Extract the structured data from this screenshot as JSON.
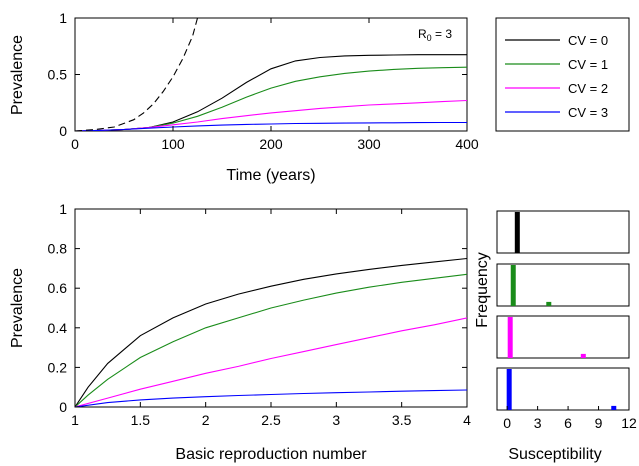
{
  "chart_data": [
    {
      "id": "top",
      "type": "line",
      "xlabel": "Time (years)",
      "ylabel": "Prevalence",
      "xlim": [
        0,
        400
      ],
      "ylim": [
        0,
        1
      ],
      "xticks": [
        "0",
        "100",
        "200",
        "300",
        "400"
      ],
      "yticks": [
        "0",
        "0.5",
        "1"
      ],
      "annotation": {
        "base": "R",
        "sub": "0",
        "rest": " = 3"
      },
      "series": [
        {
          "name": "CV = 0",
          "color": "#000000",
          "dash": false,
          "x": [
            0,
            25,
            50,
            75,
            100,
            125,
            150,
            175,
            200,
            225,
            250,
            275,
            300,
            325,
            350,
            375,
            400
          ],
          "y": [
            0.0,
            0.005,
            0.013,
            0.03,
            0.08,
            0.17,
            0.29,
            0.43,
            0.55,
            0.62,
            0.65,
            0.665,
            0.67,
            0.673,
            0.675,
            0.675,
            0.675
          ]
        },
        {
          "name": "CV = 1",
          "color": "#1a8c1a",
          "dash": false,
          "x": [
            0,
            25,
            50,
            75,
            100,
            125,
            150,
            175,
            200,
            225,
            250,
            275,
            300,
            325,
            350,
            375,
            400
          ],
          "y": [
            0.0,
            0.005,
            0.013,
            0.03,
            0.07,
            0.13,
            0.21,
            0.3,
            0.38,
            0.44,
            0.48,
            0.51,
            0.53,
            0.545,
            0.555,
            0.56,
            0.565
          ]
        },
        {
          "name": "CV = 2",
          "color": "#ff00ff",
          "dash": false,
          "x": [
            0,
            25,
            50,
            75,
            100,
            125,
            150,
            175,
            200,
            225,
            250,
            275,
            300,
            325,
            350,
            375,
            400
          ],
          "y": [
            0.0,
            0.005,
            0.013,
            0.03,
            0.055,
            0.08,
            0.11,
            0.135,
            0.16,
            0.18,
            0.2,
            0.215,
            0.23,
            0.24,
            0.25,
            0.26,
            0.27
          ]
        },
        {
          "name": "CV = 3",
          "color": "#0000ff",
          "dash": false,
          "x": [
            0,
            25,
            50,
            75,
            100,
            125,
            150,
            175,
            200,
            225,
            250,
            275,
            300,
            325,
            350,
            375,
            400
          ],
          "y": [
            0.0,
            0.005,
            0.013,
            0.025,
            0.035,
            0.045,
            0.052,
            0.058,
            0.062,
            0.066,
            0.068,
            0.07,
            0.072,
            0.073,
            0.074,
            0.075,
            0.075
          ]
        },
        {
          "name": "",
          "color": "#000000",
          "dash": true,
          "x": [
            0,
            20,
            40,
            60,
            70,
            80,
            90,
            100,
            110,
            120,
            125
          ],
          "y": [
            0.0,
            0.012,
            0.035,
            0.1,
            0.16,
            0.24,
            0.35,
            0.48,
            0.64,
            0.84,
            1.0
          ]
        }
      ],
      "legend": {
        "placement": "right",
        "entries": [
          "CV = 0",
          "CV = 1",
          "CV = 2",
          "CV = 3"
        ]
      }
    },
    {
      "id": "bottom",
      "type": "line",
      "xlabel": "Basic reproduction number",
      "ylabel": "Prevalence",
      "xlim": [
        1,
        4
      ],
      "ylim": [
        0,
        1
      ],
      "xticks": [
        "1",
        "1.5",
        "2",
        "2.5",
        "3",
        "3.5",
        "4"
      ],
      "yticks": [
        "0",
        "0.2",
        "0.4",
        "0.6",
        "0.8",
        "1"
      ],
      "series": [
        {
          "name": "CV = 0",
          "color": "#000000",
          "x": [
            1,
            1.1,
            1.25,
            1.5,
            1.75,
            2,
            2.25,
            2.5,
            2.75,
            3,
            3.25,
            3.5,
            3.75,
            4
          ],
          "y": [
            0,
            0.1,
            0.22,
            0.36,
            0.45,
            0.52,
            0.57,
            0.61,
            0.645,
            0.672,
            0.695,
            0.715,
            0.733,
            0.75
          ]
        },
        {
          "name": "CV = 1",
          "color": "#1a8c1a",
          "x": [
            1,
            1.1,
            1.25,
            1.5,
            1.75,
            2,
            2.25,
            2.5,
            2.75,
            3,
            3.25,
            3.5,
            3.75,
            4
          ],
          "y": [
            0,
            0.06,
            0.14,
            0.25,
            0.33,
            0.4,
            0.45,
            0.5,
            0.54,
            0.575,
            0.605,
            0.63,
            0.65,
            0.67
          ]
        },
        {
          "name": "CV = 2",
          "color": "#ff00ff",
          "x": [
            1,
            1.25,
            1.5,
            1.75,
            2,
            2.25,
            2.5,
            2.75,
            3,
            3.25,
            3.5,
            3.75,
            4
          ],
          "y": [
            0,
            0.045,
            0.09,
            0.13,
            0.17,
            0.205,
            0.245,
            0.28,
            0.315,
            0.35,
            0.385,
            0.415,
            0.45
          ]
        },
        {
          "name": "CV = 3",
          "color": "#0000ff",
          "x": [
            1,
            1.25,
            1.5,
            1.75,
            2,
            2.25,
            2.5,
            2.75,
            3,
            3.25,
            3.5,
            3.75,
            4
          ],
          "y": [
            0,
            0.022,
            0.036,
            0.045,
            0.052,
            0.058,
            0.063,
            0.068,
            0.072,
            0.076,
            0.08,
            0.083,
            0.086
          ]
        }
      ]
    },
    {
      "id": "histograms",
      "type": "bar",
      "xlabel": "Susceptibility",
      "ylabel": "Frequency",
      "xlim": [
        -1,
        12
      ],
      "xticks": [
        "0",
        "3",
        "6",
        "9",
        "12"
      ],
      "panels": [
        {
          "name": "CV = 0",
          "color": "#000000",
          "bars": [
            {
              "x": 1.0,
              "h": 1.0
            }
          ]
        },
        {
          "name": "CV = 1",
          "color": "#1a8c1a",
          "bars": [
            {
              "x": 0.6,
              "h": 1.0
            },
            {
              "x": 4.1,
              "h": 0.1
            }
          ]
        },
        {
          "name": "CV = 2",
          "color": "#ff00ff",
          "bars": [
            {
              "x": 0.3,
              "h": 1.0
            },
            {
              "x": 7.5,
              "h": 0.1
            }
          ]
        },
        {
          "name": "CV = 3",
          "color": "#0000ff",
          "bars": [
            {
              "x": 0.2,
              "h": 1.0
            },
            {
              "x": 10.5,
              "h": 0.1
            }
          ]
        }
      ]
    }
  ]
}
